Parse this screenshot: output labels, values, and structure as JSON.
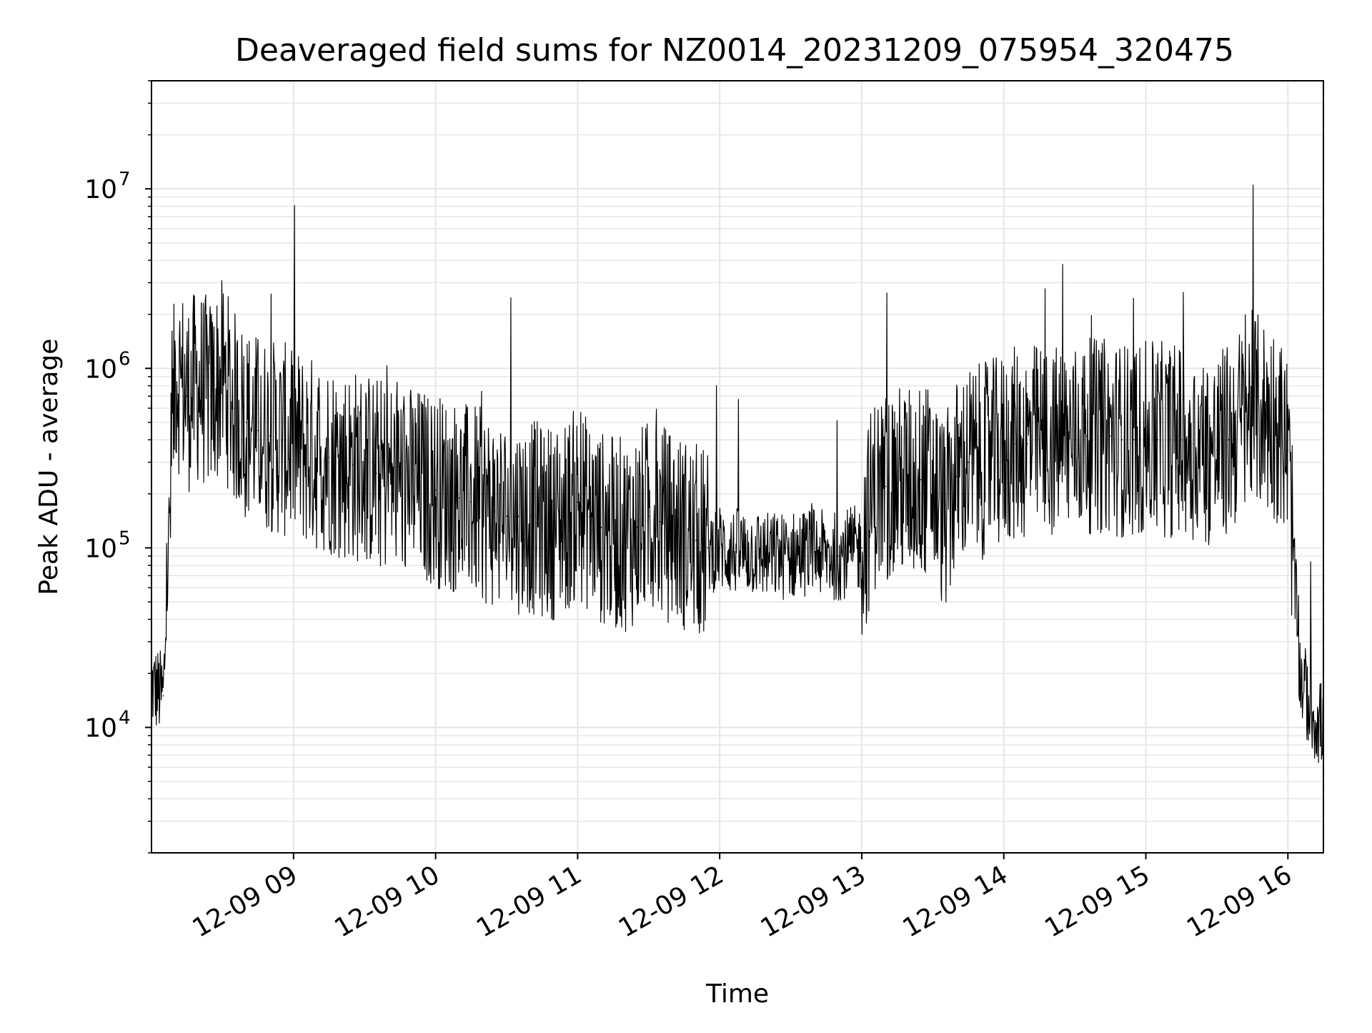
{
  "chart_data": {
    "type": "line",
    "title": "Deaveraged field sums for NZ0014_20231209_075954_320475",
    "xlabel": "Time",
    "ylabel": "Peak ADU - average",
    "yscale": "log",
    "ylim": [
      2000,
      40000000
    ],
    "xlim": [
      "2023-12-09 08:00",
      "2023-12-09 16:15"
    ],
    "grid": true,
    "line_color": "#000000",
    "grid_color": "#e6e6e6",
    "x_ticks": [
      "12-09 09",
      "12-09 10",
      "12-09 11",
      "12-09 12",
      "12-09 13",
      "12-09 14",
      "12-09 15",
      "12-09 16"
    ],
    "y_ticks": [
      {
        "base": "10",
        "exp": "4"
      },
      {
        "base": "10",
        "exp": "5"
      },
      {
        "base": "10",
        "exp": "6"
      },
      {
        "base": "10",
        "exp": "7"
      }
    ],
    "series": [
      {
        "x": [
          "08:00",
          "08:05",
          "08:10",
          "08:15",
          "08:20",
          "08:25",
          "08:30",
          "08:35",
          "08:40",
          "08:45",
          "08:50",
          "08:55",
          "09:00",
          "09:05",
          "09:10",
          "09:15",
          "09:20",
          "09:25",
          "09:30",
          "09:35",
          "09:40",
          "09:45",
          "09:50",
          "09:55",
          "10:00",
          "10:05",
          "10:10",
          "10:15",
          "10:20",
          "10:25",
          "10:30",
          "10:35",
          "10:40",
          "10:45",
          "10:50",
          "10:55",
          "11:00",
          "11:05",
          "11:10",
          "11:15",
          "11:20",
          "11:25",
          "11:30",
          "11:35",
          "11:40",
          "11:45",
          "11:50",
          "11:55",
          "12:00",
          "12:05",
          "12:10",
          "12:15",
          "12:20",
          "12:25",
          "12:30",
          "12:35",
          "12:40",
          "12:45",
          "12:50",
          "12:55",
          "13:00",
          "13:05",
          "13:10",
          "13:15",
          "13:20",
          "13:25",
          "13:30",
          "13:35",
          "13:40",
          "13:45",
          "13:50",
          "13:55",
          "14:00",
          "14:05",
          "14:10",
          "14:15",
          "14:20",
          "14:25",
          "14:30",
          "14:35",
          "14:40",
          "14:45",
          "14:50",
          "14:55",
          "15:00",
          "15:05",
          "15:10",
          "15:15",
          "15:20",
          "15:25",
          "15:30",
          "15:35",
          "15:40",
          "15:45",
          "15:50",
          "15:55",
          "16:00",
          "16:05",
          "16:10",
          "16:15"
        ],
        "y": [
          17000,
          15000,
          1000000,
          700000,
          800000,
          700000,
          900000,
          600000,
          500000,
          450000,
          420000,
          400000,
          380000,
          350000,
          330000,
          320000,
          300000,
          290000,
          280000,
          260000,
          250000,
          240000,
          230000,
          220000,
          210000,
          200000,
          190000,
          180000,
          170000,
          160000,
          150000,
          150000,
          150000,
          140000,
          140000,
          150000,
          180000,
          150000,
          130000,
          120000,
          120000,
          130000,
          150000,
          140000,
          130000,
          120000,
          110000,
          100000,
          100000,
          95000,
          95000,
          95000,
          90000,
          90000,
          90000,
          95000,
          95000,
          90000,
          90000,
          95000,
          100000,
          200000,
          220000,
          230000,
          230000,
          240000,
          230000,
          150000,
          250000,
          300000,
          300000,
          320000,
          350000,
          380000,
          380000,
          400000,
          380000,
          400000,
          400000,
          420000,
          420000,
          420000,
          400000,
          400000,
          400000,
          400000,
          400000,
          400000,
          380000,
          350000,
          350000,
          400000,
          500000,
          600000,
          550000,
          500000,
          350000,
          20000,
          12000,
          10000
        ]
      }
    ]
  }
}
